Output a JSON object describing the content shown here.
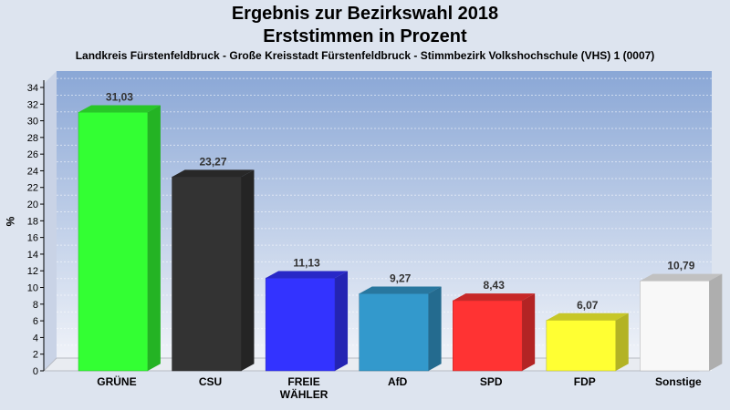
{
  "chart_data": {
    "type": "bar",
    "title": "Ergebnis zur Bezirkswahl 2018",
    "subtitle_line": "Erststimmen in Prozent",
    "subtitle": "Landkreis Fürstenfeldbruck - Große Kreisstadt Fürstenfeldbruck - Stimmbezirk Volkshochschule (VHS) 1 (0007)",
    "ylabel": "%",
    "categories": [
      "GRÜNE",
      "CSU",
      "FREIE WÄHLER",
      "AfD",
      "SPD",
      "FDP",
      "Sonstige"
    ],
    "category_lines": [
      [
        "GRÜNE"
      ],
      [
        "CSU"
      ],
      [
        "FREIE",
        "WÄHLER"
      ],
      [
        "AfD"
      ],
      [
        "SPD"
      ],
      [
        "FDP"
      ],
      [
        "Sonstige"
      ]
    ],
    "values": [
      31.03,
      23.27,
      11.13,
      9.27,
      8.43,
      6.07,
      10.79
    ],
    "value_labels": [
      "31,03",
      "23,27",
      "11,13",
      "9,27",
      "8,43",
      "6,07",
      "10,79"
    ],
    "colors": [
      "#33ff33",
      "#333333",
      "#3333ff",
      "#3399cc",
      "#ff3333",
      "#ffff33",
      "#f8f8f8"
    ],
    "ylim": [
      0,
      34
    ],
    "yticks": [
      0,
      2,
      4,
      6,
      8,
      10,
      12,
      14,
      16,
      18,
      20,
      22,
      24,
      26,
      28,
      30,
      32,
      34
    ],
    "grid": true,
    "legend": "none"
  }
}
